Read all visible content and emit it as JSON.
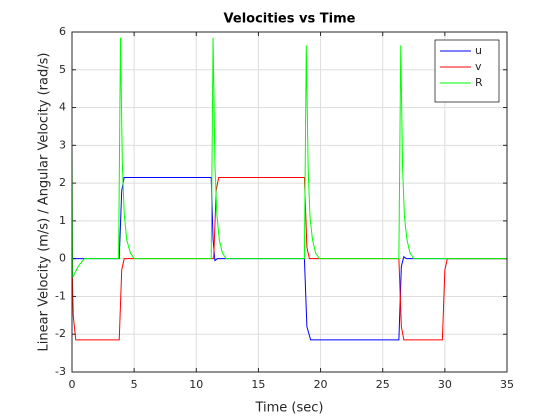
{
  "chart_data": {
    "type": "line",
    "title": "Velocities vs Time",
    "xlabel": "Time (sec)",
    "ylabel": "Linear Velocity (m/s) / Angular Velocity (rad/s)",
    "xlim": [
      0,
      35
    ],
    "xticks": [
      0,
      5,
      10,
      15,
      20,
      25,
      30,
      35
    ],
    "ylim": [
      -3,
      6
    ],
    "yticks": [
      -3,
      -2,
      -1,
      0,
      1,
      2,
      3,
      4,
      5,
      6
    ],
    "grid": true,
    "legend": "northeast",
    "series": [
      {
        "name": "u",
        "color": "#0000ff",
        "x": [
          0,
          3.8,
          4.0,
          4.2,
          11.2,
          11.35,
          11.5,
          11.7,
          18.7,
          18.9,
          19.2,
          26.3,
          26.5,
          26.7,
          26.9,
          35
        ],
        "values": [
          0,
          0,
          1.8,
          2.15,
          2.15,
          0.5,
          -0.05,
          0,
          0,
          -1.8,
          -2.15,
          -2.15,
          -0.2,
          0.05,
          0,
          0
        ]
      },
      {
        "name": "v",
        "color": "#ff0000",
        "x": [
          0,
          0.1,
          0.3,
          3.8,
          4.0,
          4.2,
          11.4,
          11.6,
          11.8,
          18.7,
          18.9,
          19.1,
          26.3,
          26.5,
          26.7,
          29.8,
          30.0,
          30.2,
          35
        ],
        "values": [
          0,
          -1.5,
          -2.15,
          -2.15,
          -0.3,
          0,
          0,
          1.8,
          2.15,
          2.15,
          0.3,
          0,
          0,
          -1.8,
          -2.15,
          -2.15,
          -0.3,
          0,
          0
        ]
      },
      {
        "name": "R",
        "color": "#00ff00",
        "x": [
          0,
          0.05,
          0.2,
          0.5,
          1.0,
          3.75,
          3.9,
          4.05,
          4.2,
          4.4,
          4.7,
          5.0,
          11.2,
          11.35,
          11.5,
          11.65,
          11.85,
          12.1,
          12.4,
          18.7,
          18.85,
          19.0,
          19.15,
          19.35,
          19.6,
          19.9,
          26.3,
          26.45,
          26.6,
          26.75,
          26.95,
          27.2,
          27.5,
          35
        ],
        "values": [
          3,
          -0.5,
          -0.4,
          -0.2,
          0,
          0,
          5.85,
          2.5,
          1.2,
          0.5,
          0.15,
          0,
          0,
          5.85,
          2.5,
          1.2,
          0.5,
          0.15,
          0,
          0,
          5.65,
          2.4,
          1.1,
          0.5,
          0.15,
          0,
          0,
          5.65,
          2.4,
          1.1,
          0.5,
          0.15,
          0,
          0
        ]
      }
    ]
  }
}
